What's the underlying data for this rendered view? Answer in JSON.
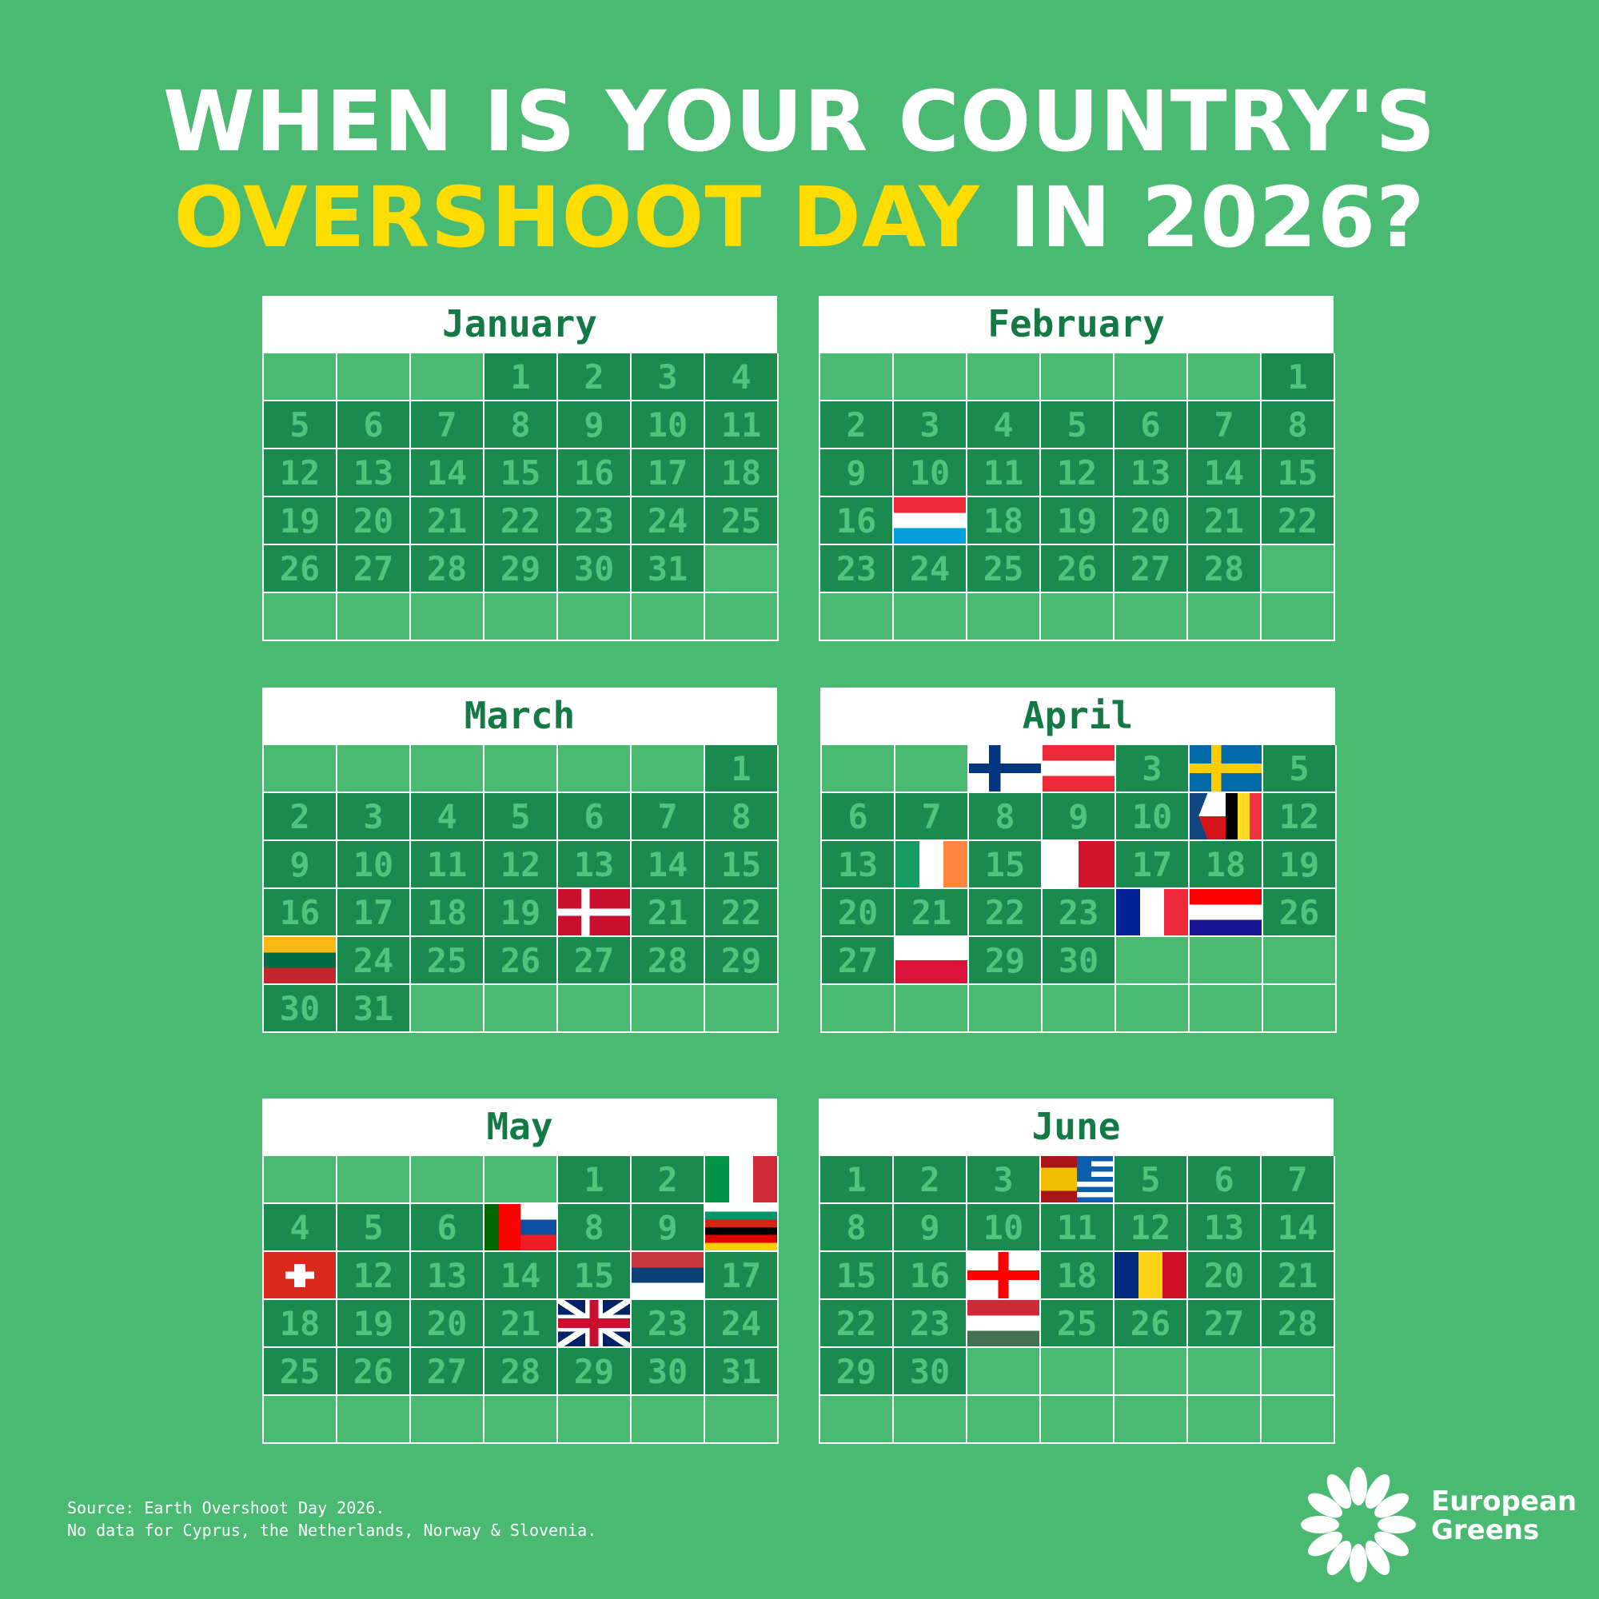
{
  "title": {
    "line1": "WHEN IS YOUR COUNTRY'S",
    "highlight": "OVERSHOOT DAY",
    "rest": "IN 2026?"
  },
  "colors": {
    "background": "#4aba73",
    "cell_day": "#1a8a4e",
    "highlight": "#ffdd00",
    "month_text": "#137a45"
  },
  "months": [
    {
      "name": "January",
      "offset": 3,
      "days": 31,
      "flags": {}
    },
    {
      "name": "February",
      "offset": 6,
      "days": 28,
      "flags": {
        "17": [
          "luxembourg"
        ]
      }
    },
    {
      "name": "March",
      "offset": 6,
      "days": 31,
      "flags": {
        "20": [
          "denmark"
        ],
        "23": [
          "lithuania"
        ]
      }
    },
    {
      "name": "April",
      "offset": 2,
      "days": 30,
      "flags": {
        "1": [
          "finland"
        ],
        "2": [
          "austria"
        ],
        "4": [
          "sweden"
        ],
        "11": [
          "czechia",
          "belgium"
        ],
        "14": [
          "ireland"
        ],
        "16": [
          "malta"
        ],
        "24": [
          "france"
        ],
        "25": [
          "croatia"
        ],
        "28": [
          "poland"
        ]
      }
    },
    {
      "name": "May",
      "offset": 4,
      "days": 31,
      "flags": {
        "3": [
          "italy"
        ],
        "7": [
          "portugal",
          "slovakia"
        ],
        "10": [
          "bulgaria",
          "germany"
        ],
        "11": [
          "switzerland"
        ],
        "16": [
          "serbia"
        ],
        "22": [
          "united-kingdom"
        ]
      }
    },
    {
      "name": "June",
      "offset": 0,
      "days": 30,
      "flags": {
        "4": [
          "spain",
          "greece"
        ],
        "17": [
          "georgia"
        ],
        "19": [
          "romania"
        ],
        "24": [
          "hungary"
        ]
      }
    }
  ],
  "footer": {
    "source": "Source: Earth Overshoot Day 2026.",
    "note": "No data for Cyprus, the Netherlands, Norway & Slovenia."
  },
  "brand": {
    "line1": "European",
    "line2": "Greens"
  }
}
